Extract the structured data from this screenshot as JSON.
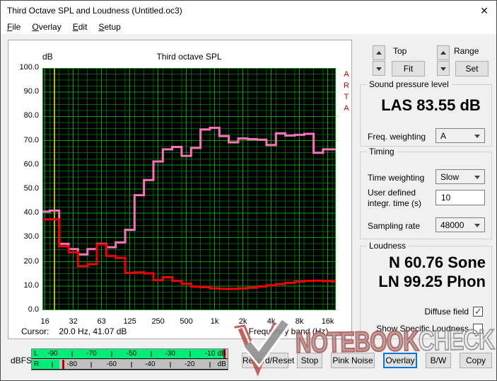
{
  "window": {
    "title": "Third Octave SPL and Loudness (Untitled.oc3)",
    "close_glyph": "✕"
  },
  "menu": {
    "items": [
      "File",
      "Overlay",
      "Edit",
      "Setup"
    ]
  },
  "chart": {
    "db_unit_label": "dB",
    "title": "Third octave SPL",
    "arta_label": "ARTA",
    "cursor_prefix": "Cursor:",
    "cursor_value": "20.0 Hz, 41.07 dB",
    "x_axis_label": "Frequency band (Hz)"
  },
  "chart_data": {
    "type": "line",
    "style": "step-bands",
    "title": "Third octave SPL",
    "xlabel": "Frequency band (Hz)",
    "ylabel": "dB",
    "ylim": [
      0,
      100
    ],
    "y_tick_labels": [
      "100.0",
      "90.0",
      "80.0",
      "70.0",
      "60.0",
      "50.0",
      "40.0",
      "30.0",
      "20.0",
      "10.0",
      "0.0"
    ],
    "x_tick_labels": [
      "16",
      "32",
      "63",
      "125",
      "250",
      "500",
      "1k",
      "2k",
      "4k",
      "8k",
      "16k"
    ],
    "x_tick_band_indices": [
      0,
      3,
      6,
      9,
      12,
      15,
      18,
      21,
      24,
      27,
      30
    ],
    "bands": [
      "16",
      "20",
      "25",
      "31.5",
      "40",
      "50",
      "63",
      "80",
      "100",
      "125",
      "160",
      "200",
      "250",
      "315",
      "400",
      "500",
      "630",
      "800",
      "1k",
      "1.25k",
      "1.6k",
      "2k",
      "2.5k",
      "3.15k",
      "4k",
      "5k",
      "6.3k",
      "8k",
      "10k",
      "12.5k",
      "16k",
      "20k"
    ],
    "series": [
      {
        "name": "overlay-spl",
        "color": "#f873b8",
        "values": [
          40.7,
          41.1,
          27.4,
          25.2,
          23.0,
          25.2,
          27.4,
          26.0,
          28.0,
          33.2,
          47.5,
          53.7,
          61.4,
          66.4,
          67.4,
          63.7,
          67.0,
          74.6,
          75.3,
          71.9,
          69.3,
          70.9,
          70.6,
          70.4,
          68.2,
          73.0,
          72.1,
          72.4,
          72.8,
          65.0,
          66.4,
          66.4
        ]
      },
      {
        "name": "current-spl",
        "color": "#f00000",
        "values": [
          37.5,
          37.5,
          26.4,
          23.9,
          18.2,
          19.0,
          27.2,
          22.4,
          21.6,
          15.4,
          15.6,
          15.2,
          12.4,
          13.6,
          12.1,
          10.9,
          9.7,
          9.5,
          9.0,
          8.8,
          8.8,
          9.0,
          9.3,
          9.8,
          10.3,
          10.8,
          11.3,
          11.8,
          12.1,
          12.2,
          12.0,
          11.8
        ]
      }
    ],
    "cursor": {
      "band_index": 1,
      "frequency": "20.0 Hz",
      "value_db": 41.07,
      "color": "#b8b800"
    },
    "grid": {
      "on": true,
      "minor_color": "#006200",
      "major_color": "#00a400",
      "background": "#000000"
    },
    "legend_position": "none"
  },
  "top_controls": {
    "top_label": "Top",
    "fit_button": "Fit",
    "range_label": "Range",
    "set_button": "Set"
  },
  "spl": {
    "group_label": "Sound pressure level",
    "value": "LAS 83.55 dB",
    "freq_weighting_label": "Freq. weighting",
    "freq_weighting_value": "A"
  },
  "timing": {
    "group_label": "Timing",
    "time_weighting_label": "Time weighting",
    "time_weighting_value": "Slow",
    "integr_label_line1": "User defined",
    "integr_label_line2": "integr. time (s)",
    "integr_value": "10",
    "sampling_label": "Sampling rate",
    "sampling_value": "48000"
  },
  "loudness": {
    "group_label": "Loudness",
    "n_value": "N 60.76 Sone",
    "ln_value": "LN 99.25 Phon",
    "diffuse_label": "Diffuse field",
    "diffuse_checked": true,
    "specific_label": "Show Specific Loudness",
    "specific_checked": false
  },
  "meter": {
    "label": "dBFS",
    "rows": [
      {
        "channel": "L",
        "fill_pct": 97.7,
        "peak_pct": 97.8,
        "labels": [
          [
            "-90",
            10.6
          ],
          [
            "-70",
            30.5
          ],
          [
            "-50",
            50.9
          ],
          [
            "-30",
            70.6
          ],
          [
            "-10",
            91.0
          ]
        ],
        "ticks": [
          20.5,
          40.7,
          60.9,
          80.7
        ],
        "unit": "dB",
        "unit_pct": 97.0
      },
      {
        "channel": "R",
        "fill_pct": 14.2,
        "peak_pct": 15.4,
        "labels": [
          [
            "-80",
            20.5
          ],
          [
            "-60",
            40.7
          ],
          [
            "-40",
            60.4
          ],
          [
            "-20",
            80.6
          ]
        ],
        "ticks": [
          10.6,
          30.5,
          50.9,
          70.6,
          91.0
        ],
        "unit": "dB",
        "unit_pct": 97.0
      }
    ]
  },
  "buttons": {
    "items": [
      {
        "label": "Record/Reset",
        "width": 66,
        "focused": false
      },
      {
        "label": "Stop",
        "width": 36,
        "focused": false
      },
      {
        "label": "Pink Noise",
        "width": 62,
        "focused": false
      },
      {
        "label": "Overlay",
        "width": 48,
        "focused": true
      },
      {
        "label": "B/W",
        "width": 36,
        "focused": false
      },
      {
        "label": "Copy",
        "width": 46,
        "focused": false
      }
    ]
  },
  "watermark": {
    "brand_part1": "NOTEBOOK",
    "brand_part2": "CHECK"
  }
}
